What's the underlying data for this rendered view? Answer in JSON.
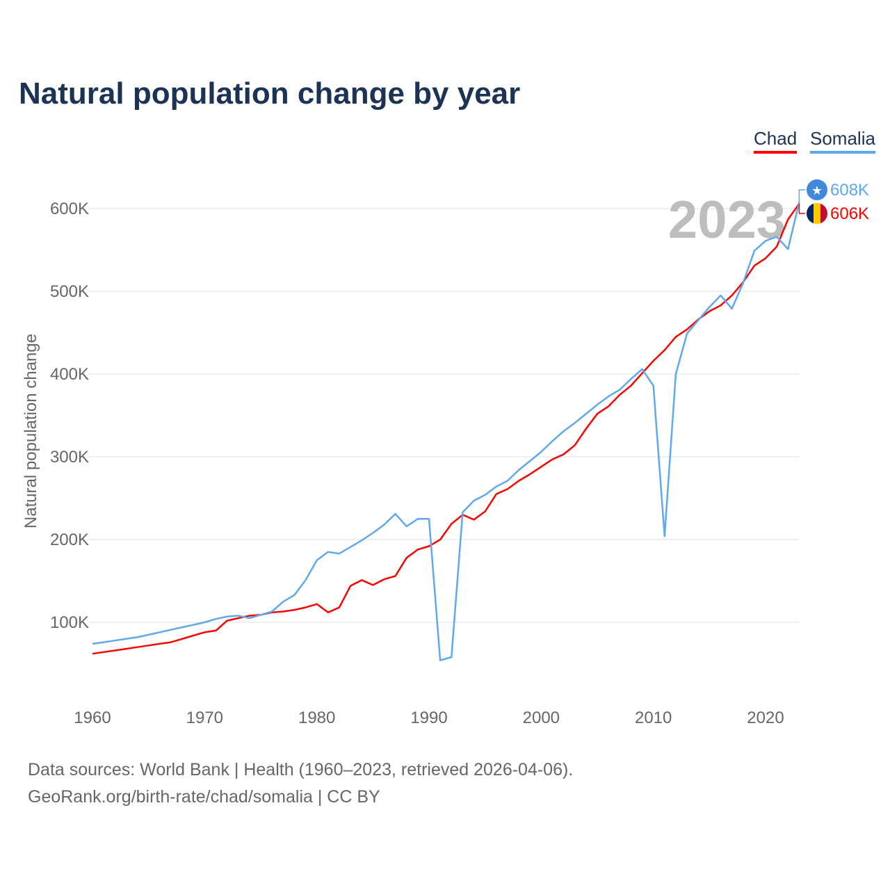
{
  "title": "Natural population change by year",
  "legend": {
    "chad": "Chad",
    "somalia": "Somalia"
  },
  "source_line1": "Data sources: World Bank | Health (1960–2023, retrieved 2026-04-06).",
  "source_line2": "GeoRank.org/birth-rate/chad/somalia | CC BY",
  "chart_data": {
    "type": "line",
    "title": "Natural population change by year",
    "ylabel": "Natural population change",
    "xlabel": "",
    "year_label": "2023",
    "xlim": [
      1960,
      2023
    ],
    "ylim": [
      0,
      650000
    ],
    "x_ticks": [
      1960,
      1970,
      1980,
      1990,
      2000,
      2010,
      2020
    ],
    "y_ticks": [
      {
        "v": 100,
        "label": "100K"
      },
      {
        "v": 200,
        "label": "200K"
      },
      {
        "v": 300,
        "label": "300K"
      },
      {
        "v": 400,
        "label": "400K"
      },
      {
        "v": 500,
        "label": "500K"
      },
      {
        "v": 600,
        "label": "600K"
      }
    ],
    "units": "thousands",
    "grid": true,
    "legend_position": "top-right",
    "start_year": 1960,
    "series": [
      {
        "name": "Chad",
        "color": "#ff0000",
        "end_label": "606K",
        "values": [
          62,
          64,
          66,
          68,
          70,
          72,
          74,
          76,
          80,
          84,
          88,
          90,
          102,
          105,
          108,
          109,
          112,
          113,
          115,
          118,
          122,
          112,
          118,
          144,
          151,
          145,
          152,
          156,
          178,
          188,
          192,
          200,
          219,
          230,
          224,
          234,
          255,
          261,
          271,
          279,
          288,
          297,
          303,
          314,
          334,
          352,
          361,
          375,
          386,
          401,
          416,
          429,
          445,
          454,
          466,
          476,
          483,
          495,
          511,
          531,
          540,
          554,
          587,
          606
        ]
      },
      {
        "name": "Somalia",
        "color": "#5fa8ec",
        "end_label": "608K",
        "values": [
          74,
          76,
          78,
          80,
          82,
          85,
          88,
          91,
          94,
          97,
          100,
          104,
          107,
          108,
          105,
          109,
          113,
          125,
          133,
          151,
          175,
          185,
          183,
          191,
          199,
          208,
          218,
          231,
          216,
          225,
          225,
          54,
          58,
          233,
          247,
          254,
          264,
          271,
          284,
          295,
          306,
          319,
          331,
          341,
          352,
          363,
          373,
          381,
          394,
          406,
          386,
          204,
          400,
          449,
          465,
          481,
          495,
          479,
          510,
          549,
          561,
          566,
          551,
          608
        ]
      }
    ]
  }
}
